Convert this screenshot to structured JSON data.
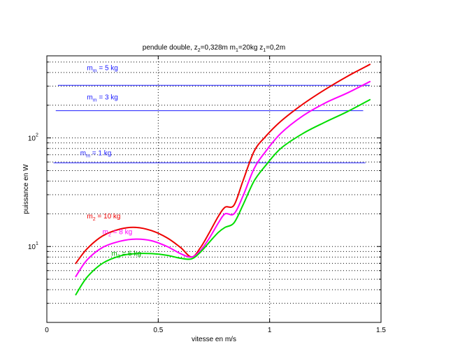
{
  "chart_data": {
    "type": "line",
    "title": "pendule double, z2=0,328m m1=20kg z1=0,2m",
    "title_parts": {
      "p0": "pendule double, z",
      "s0": "2",
      "p1": "=0,328m m",
      "s1": "1",
      "p2": "=20kg z",
      "s2": "1",
      "p3": "=0,2m"
    },
    "xlabel": "vitesse en m/s",
    "ylabel": "puissance en W",
    "xlim": [
      0,
      1.5
    ],
    "ylim": [
      2.0,
      570
    ],
    "yscale": "log",
    "grid": true,
    "x_ticks": [
      {
        "value": 0,
        "label": "0"
      },
      {
        "value": 0.5,
        "label": "0.5"
      },
      {
        "value": 1,
        "label": "1"
      },
      {
        "value": 1.5,
        "label": "1.5"
      }
    ],
    "y_ticks": [
      {
        "value": 10,
        "base": "10",
        "exp": "1"
      },
      {
        "value": 100,
        "base": "10",
        "exp": "2"
      }
    ],
    "series": [
      {
        "color": "#ee0000",
        "x": [
          0.13,
          0.18,
          0.25,
          0.33,
          0.4,
          0.47,
          0.54,
          0.6,
          0.65,
          0.69,
          0.73,
          0.77,
          0.8,
          0.84,
          0.88,
          0.93,
          0.98,
          1.05,
          1.15,
          1.25,
          1.35,
          1.45
        ],
        "y": [
          7.0,
          9.5,
          12.5,
          14.5,
          15.0,
          14.0,
          12.0,
          9.8,
          8.0,
          9.8,
          13.5,
          19.0,
          23.0,
          24.0,
          40.0,
          75.0,
          102.0,
          142.0,
          205.0,
          280.0,
          370.0,
          475.0
        ]
      },
      {
        "color": "#ff00ff",
        "x": [
          0.13,
          0.18,
          0.25,
          0.33,
          0.4,
          0.47,
          0.54,
          0.6,
          0.65,
          0.69,
          0.73,
          0.77,
          0.8,
          0.84,
          0.88,
          0.93,
          0.98,
          1.05,
          1.15,
          1.25,
          1.35,
          1.45
        ],
        "y": [
          5.3,
          7.5,
          9.8,
          11.2,
          11.7,
          11.3,
          10.0,
          8.6,
          8.0,
          9.2,
          12.0,
          16.5,
          20.0,
          20.0,
          29.0,
          52.0,
          74.0,
          110.0,
          160.0,
          210.0,
          260.0,
          330.0
        ]
      },
      {
        "color": "#00dd00",
        "x": [
          0.13,
          0.18,
          0.25,
          0.33,
          0.4,
          0.47,
          0.54,
          0.6,
          0.65,
          0.69,
          0.73,
          0.77,
          0.8,
          0.84,
          0.88,
          0.93,
          0.98,
          1.05,
          1.15,
          1.25,
          1.35,
          1.45
        ],
        "y": [
          3.6,
          5.2,
          7.0,
          8.2,
          8.6,
          8.6,
          8.3,
          7.8,
          7.7,
          8.9,
          11.0,
          13.5,
          15.0,
          16.5,
          24.0,
          40.0,
          55.0,
          80.0,
          110.0,
          140.0,
          175.0,
          225.0
        ]
      }
    ],
    "hlines": [
      {
        "color": "#1a1aff",
        "y": 305,
        "x": [
          0.05,
          1.45
        ]
      },
      {
        "color": "#1a1aff",
        "y": 178,
        "x": [
          0.04,
          1.42
        ]
      },
      {
        "color": "#1a1aff",
        "y": 59,
        "x": [
          0.03,
          1.43
        ]
      }
    ],
    "annotations": [
      {
        "color": "#1a1aff",
        "x": 0.18,
        "y": 420,
        "main": "m",
        "sub": "m",
        "rest": " = 5 kg"
      },
      {
        "color": "#1a1aff",
        "x": 0.18,
        "y": 226,
        "main": "m",
        "sub": "m",
        "rest": " = 3 kg"
      },
      {
        "color": "#1a1aff",
        "x": 0.15,
        "y": 69,
        "main": "m",
        "sub": "m",
        "rest": " = 1 kg"
      },
      {
        "color": "#ee0000",
        "x": 0.18,
        "y": 18.2,
        "main": "m",
        "sub": "2",
        "rest": " = 10 kg"
      },
      {
        "color": "#ff00ff",
        "x": 0.25,
        "y": 13.0,
        "main": "m",
        "sub": "2",
        "rest": " = 8 kg"
      },
      {
        "color": "#00aa00",
        "x": 0.29,
        "y": 8.2,
        "main": "m",
        "sub": "2",
        "rest": " = 6 kg"
      }
    ]
  }
}
